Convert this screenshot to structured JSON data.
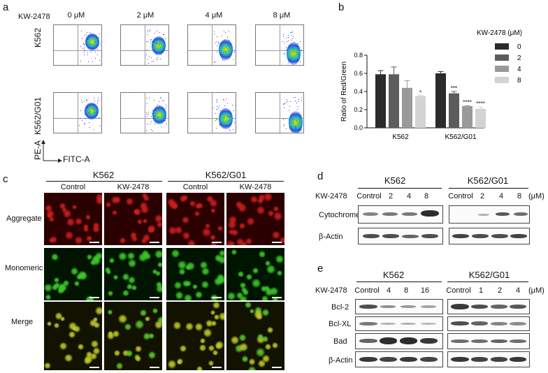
{
  "panels": {
    "a": "a",
    "b": "b",
    "c": "c",
    "d": "d",
    "e": "e"
  },
  "panel_a": {
    "drug": "KW-2478",
    "concentrations": [
      "0 μM",
      "2 μM",
      "4 μM",
      "8 μM"
    ],
    "rows": [
      "K562",
      "K562/G01"
    ],
    "ylab": "PE-A",
    "xlab": "FITC-A"
  },
  "chart_data": {
    "type": "bar",
    "categories": [
      "K562",
      "K562/G01"
    ],
    "ylabel": "Ratio of Red/Green",
    "ylim": [
      0,
      0.8
    ],
    "yticks": [
      "0.0",
      "0.2",
      "0.4",
      "0.6",
      "0.8"
    ],
    "legend_title": "KW-2478 (μM)",
    "legend_position": "right",
    "series": [
      {
        "name": "0",
        "color": "#2b2b2b",
        "values": [
          0.59,
          0.6
        ],
        "errors": [
          0.04,
          0.02
        ],
        "sig": [
          "",
          ""
        ]
      },
      {
        "name": "2",
        "color": "#5c5c5c",
        "values": [
          0.59,
          0.38
        ],
        "errors": [
          0.08,
          0.02
        ],
        "sig": [
          "",
          "***"
        ]
      },
      {
        "name": "4",
        "color": "#9a9a9a",
        "values": [
          0.44,
          0.24
        ],
        "errors": [
          0.08,
          0.005
        ],
        "sig": [
          "",
          "****"
        ]
      },
      {
        "name": "8",
        "color": "#d3d3d3",
        "values": [
          0.35,
          0.21
        ],
        "errors": [
          0.005,
          0.02
        ],
        "sig": [
          "*",
          "****"
        ]
      }
    ]
  },
  "panel_c": {
    "groups": [
      "K562",
      "K562/G01"
    ],
    "conditions": [
      "Control",
      "KW-2478",
      "Control",
      "KW-2478"
    ],
    "rows": [
      "Aggregate",
      "Monomeric",
      "Merge"
    ]
  },
  "panel_d": {
    "groups": [
      "K562",
      "K562/G01"
    ],
    "drug": "KW-2478",
    "unit": "(μM)",
    "lanes_left": [
      "Control",
      "2",
      "4",
      "8"
    ],
    "lanes_right": [
      "Control",
      "2",
      "4",
      "8"
    ],
    "rows": [
      "Cytochrome C",
      "β-Actin"
    ]
  },
  "panel_e": {
    "groups": [
      "K562",
      "K562/G01"
    ],
    "drug": "KW-2478",
    "unit": "(μM)",
    "lanes_left": [
      "Control",
      "4",
      "8",
      "16"
    ],
    "lanes_right": [
      "Control",
      "1",
      "2",
      "4"
    ],
    "rows": [
      "Bcl-2",
      "Bcl-XL",
      "Bad",
      "β-Actin"
    ]
  }
}
